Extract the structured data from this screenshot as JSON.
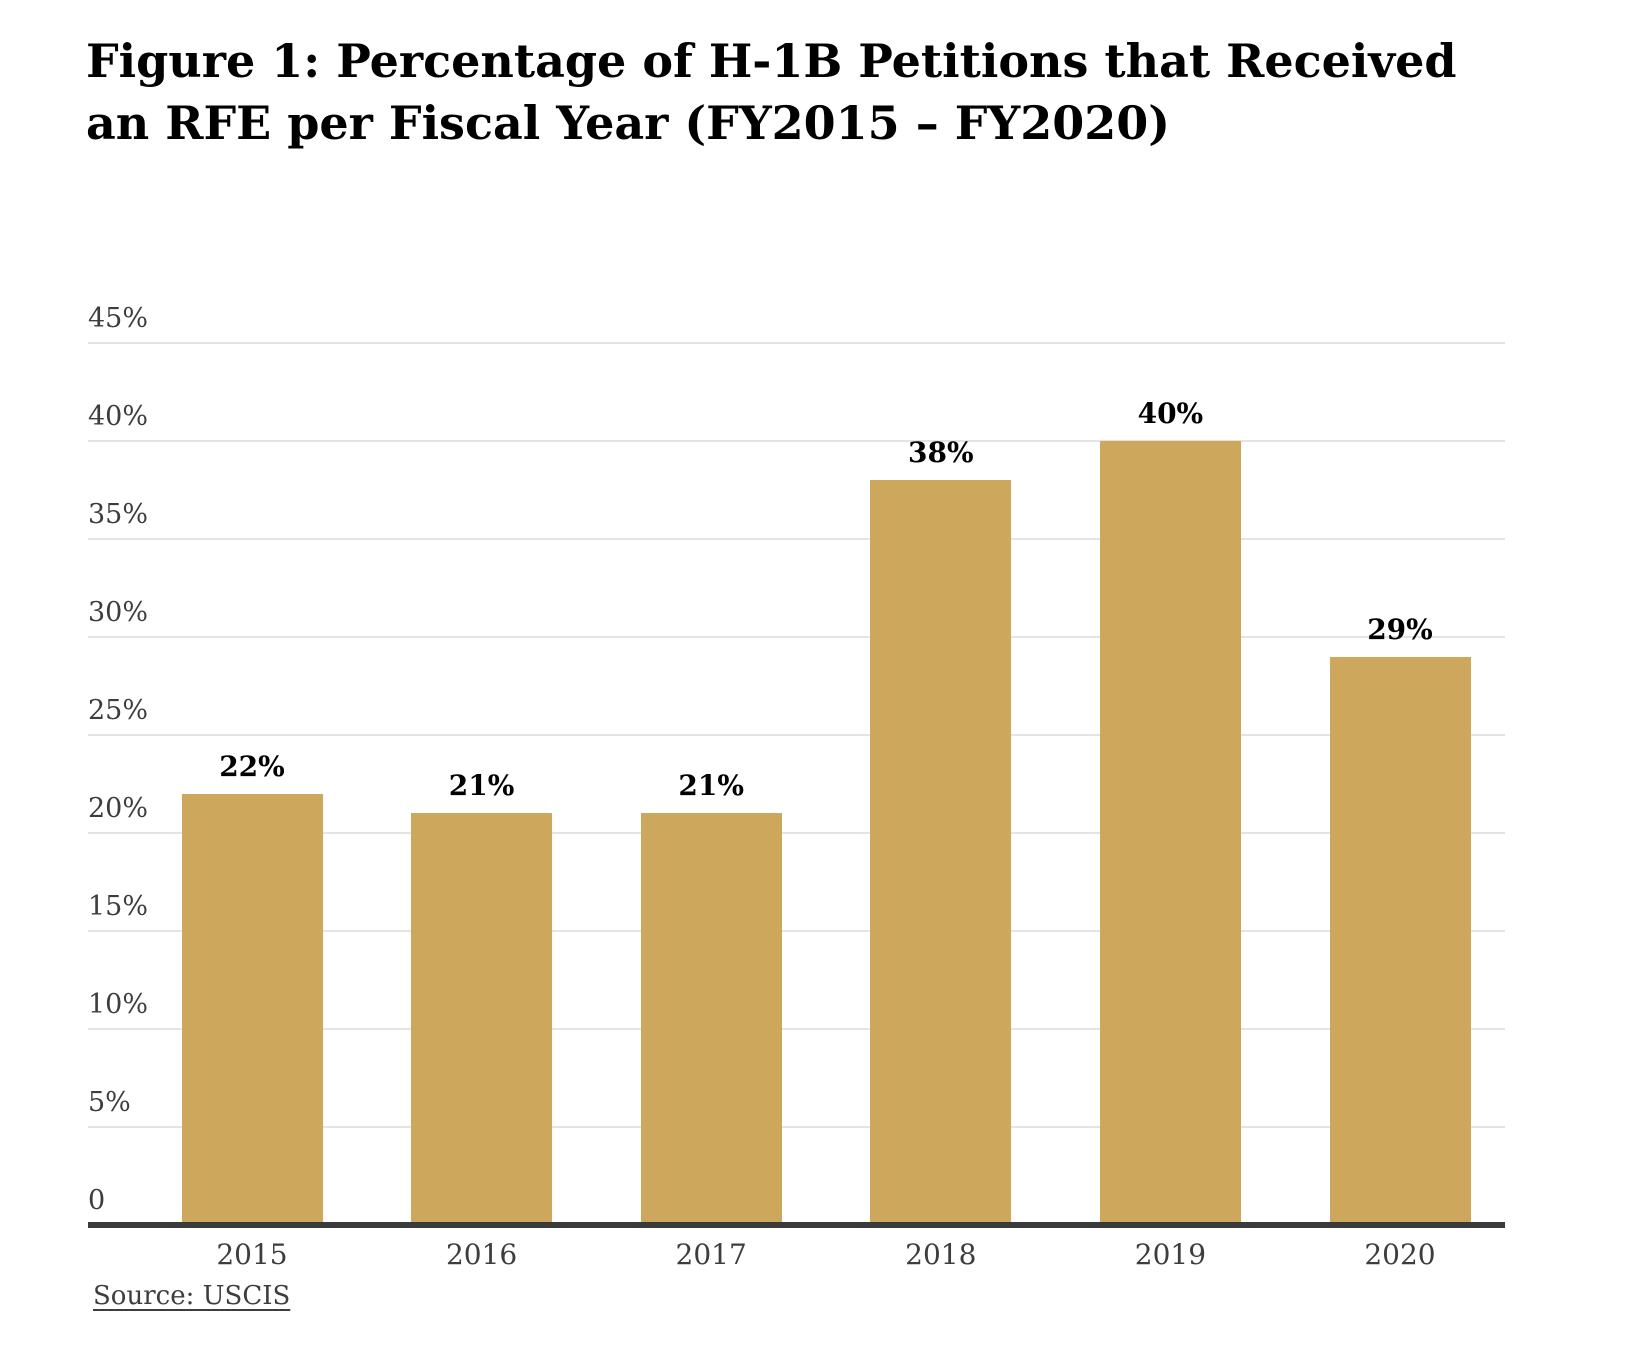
{
  "figure": {
    "title_line1": "Figure 1: Percentage of H-1B Petitions that Received",
    "title_line2": "an RFE per Fiscal Year (FY2015 – FY2020)",
    "source_label": "Source: USCIS"
  },
  "colors": {
    "bar": "#CDA85C",
    "axis_line": "#3a3a3a",
    "gridline": "#e4e4e4",
    "title_text": "#000000",
    "tick_label": "#3d3d3d",
    "value_label": "#000000",
    "source_text": "#3d3d3d",
    "background": "#ffffff"
  },
  "chart_data": {
    "type": "bar",
    "title": "Figure 1: Percentage of H-1B Petitions that Received an RFE per Fiscal Year (FY2015 – FY2020)",
    "xlabel": "",
    "ylabel": "",
    "categories": [
      "2015",
      "2016",
      "2017",
      "2018",
      "2019",
      "2020"
    ],
    "values": [
      22,
      21,
      21,
      38,
      40,
      29
    ],
    "bar_labels": [
      "22%",
      "21%",
      "21%",
      "38%",
      "40%",
      "29%"
    ],
    "y_ticks": [
      {
        "value": 45,
        "label": "45%"
      },
      {
        "value": 40,
        "label": "40%"
      },
      {
        "value": 35,
        "label": "35%"
      },
      {
        "value": 30,
        "label": "30%"
      },
      {
        "value": 25,
        "label": "25%"
      },
      {
        "value": 20,
        "label": "20%"
      },
      {
        "value": 15,
        "label": "15%"
      },
      {
        "value": 10,
        "label": "10%"
      },
      {
        "value": 5,
        "label": "5%"
      },
      {
        "value": 0,
        "label": "0"
      }
    ],
    "ylim": [
      0,
      45
    ],
    "grid": true,
    "legend": false,
    "source": "Source: USCIS"
  }
}
